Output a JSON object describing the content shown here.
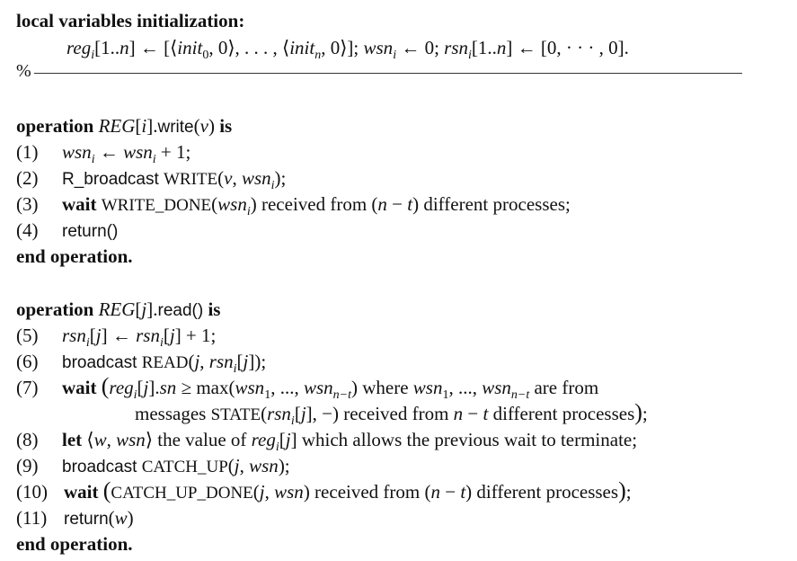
{
  "init": {
    "heading": "local variables initialization:",
    "body": "regi[1..n] ← [⟨init0, 0⟩, . . . , ⟨initn, 0⟩]; wsni ← 0; rsni[1..n] ← [0, · · · , 0]."
  },
  "separator": {
    "mark": "%"
  },
  "write_op": {
    "header_keyword": "operation",
    "header_name": "REG[i].write(v)",
    "header_is": "is",
    "lines": [
      {
        "num": "(1)",
        "text": "wsni ← wsni + 1;"
      },
      {
        "num": "(2)",
        "text": "R_broadcast WRITE(v, wsni);"
      },
      {
        "num": "(3)",
        "text": "wait WRITE_DONE(wsni) received from (n − t) different processes;"
      },
      {
        "num": "(4)",
        "text": "return()"
      }
    ],
    "end": "end operation."
  },
  "read_op": {
    "header_keyword": "operation",
    "header_name": "REG[j].read()",
    "header_is": "is",
    "lines": [
      {
        "num": "(5)",
        "text": "rsni[j] ← rsni[j] + 1;"
      },
      {
        "num": "(6)",
        "text": "broadcast READ(j, rsni[j]);"
      },
      {
        "num": "(7)",
        "text": "wait (regi[j].sn ≥ max(wsn1, ..., wsnn−t) where wsn1, ..., wsnn−t are from",
        "cont": "messages STATE(rsni[j], −) received from n − t different processes);"
      },
      {
        "num": "(8)",
        "text": "let ⟨w, wsn⟩ the value of regi[j] which allows the previous wait to terminate;"
      },
      {
        "num": "(9)",
        "text": "broadcast CATCH_UP(j, wsn);"
      },
      {
        "num": "(10)",
        "text": "wait (CATCH_UP_DONE(j, wsn) received from (n − t) different processes);"
      },
      {
        "num": "(11)",
        "text": "return(w)"
      }
    ],
    "end": "end operation."
  }
}
